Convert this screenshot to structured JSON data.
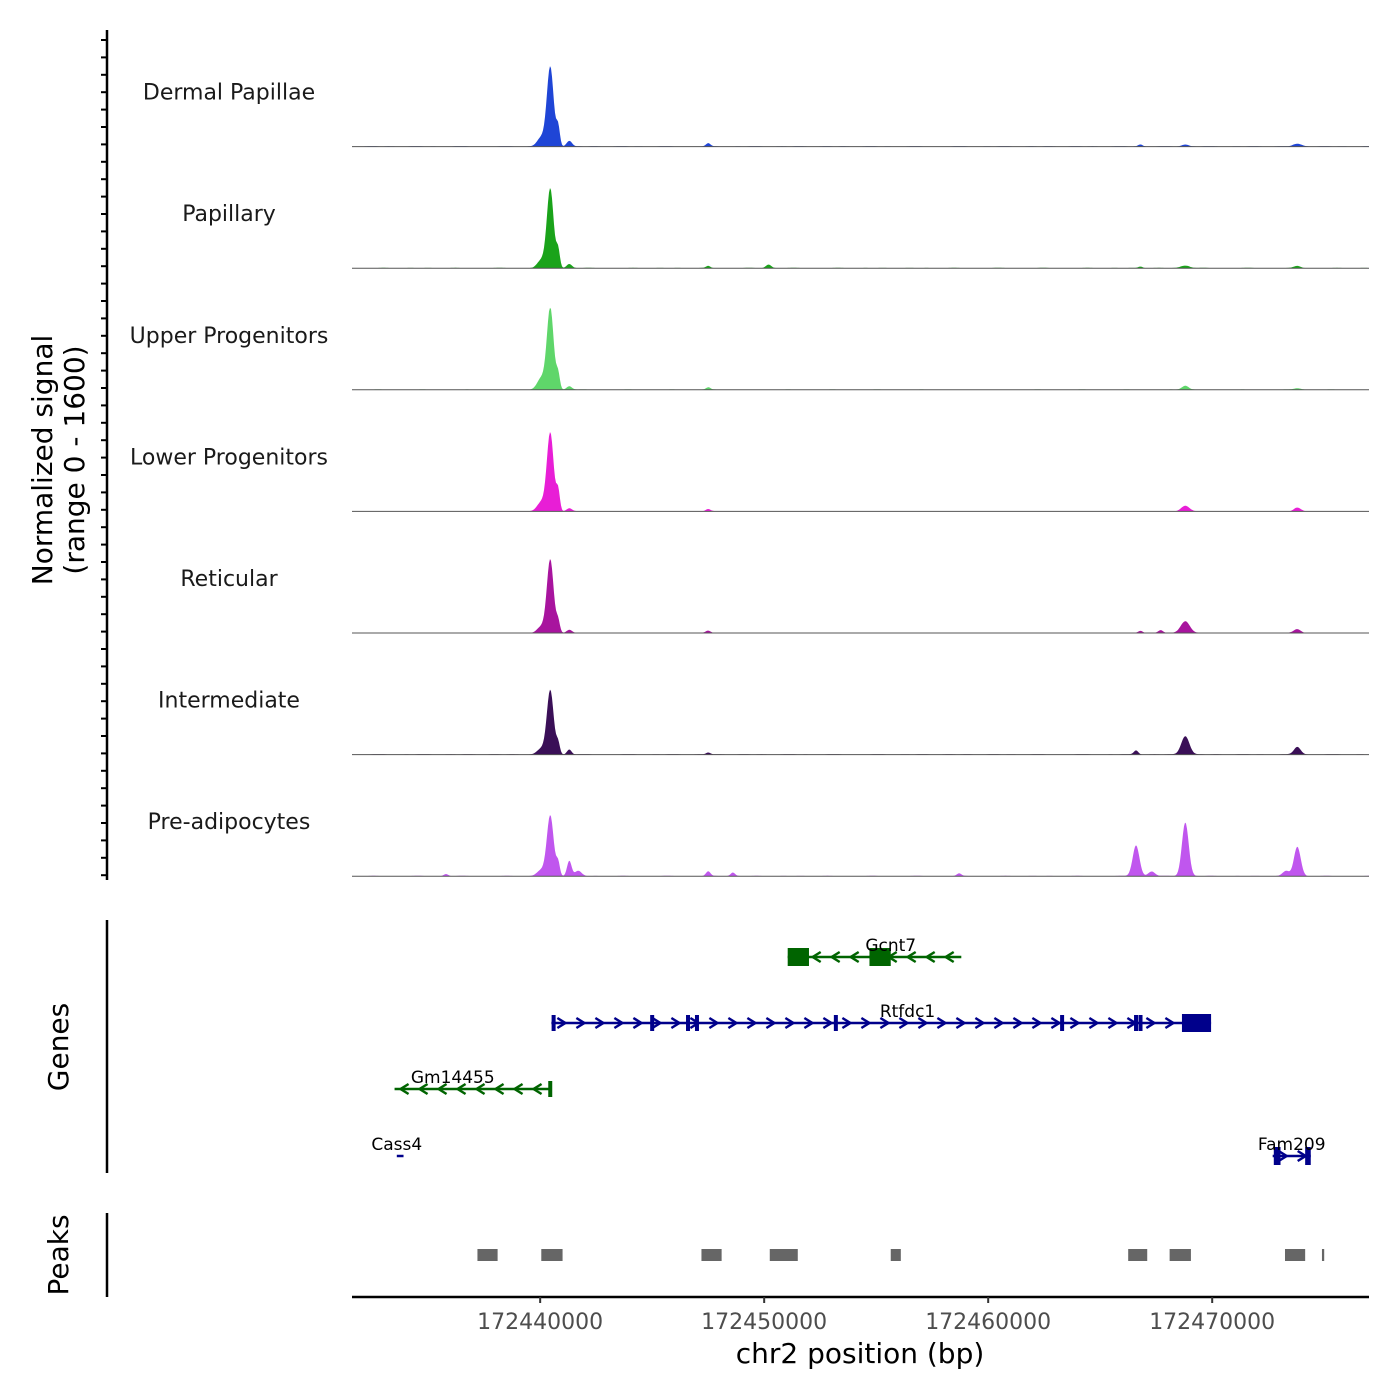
{
  "chart_data": {
    "type": "area",
    "title": "",
    "ylabel_line1": "Normalized signal",
    "ylabel_line2": "(range 0 - 1600)",
    "ylim": [
      0,
      1600
    ],
    "xlabel": "chr2 position (bp)",
    "xlim": [
      172431600,
      172477000
    ],
    "xticks": [
      172440000,
      172450000,
      172460000,
      172470000
    ],
    "xtick_labels": [
      "172440000",
      "172450000",
      "172460000",
      "172470000"
    ],
    "genes_label": "Genes",
    "peaks_label": "Peaks",
    "tracks": [
      {
        "name": "Dermal Papillae",
        "color": "#1f45d6",
        "peaks": [
          [
            172440450,
            1550,
            150
          ],
          [
            172440800,
            380,
            80
          ],
          [
            172441300,
            110,
            120
          ],
          [
            172440050,
            180,
            180
          ],
          [
            172447500,
            60,
            100
          ],
          [
            172466800,
            40,
            100
          ],
          [
            172468800,
            40,
            150
          ],
          [
            172473800,
            50,
            200
          ]
        ]
      },
      {
        "name": "Papillary",
        "color": "#1aa31a",
        "peaks": [
          [
            172440450,
            1550,
            150
          ],
          [
            172440800,
            350,
            80
          ],
          [
            172441300,
            80,
            120
          ],
          [
            172440050,
            150,
            180
          ],
          [
            172447500,
            40,
            100
          ],
          [
            172450200,
            70,
            120
          ],
          [
            172466800,
            30,
            100
          ],
          [
            172468800,
            50,
            200
          ],
          [
            172473800,
            40,
            150
          ]
        ]
      },
      {
        "name": "Upper Progenitors",
        "color": "#5fd66a",
        "peaks": [
          [
            172440450,
            1600,
            150
          ],
          [
            172440800,
            300,
            80
          ],
          [
            172441300,
            70,
            120
          ],
          [
            172440050,
            220,
            180
          ],
          [
            172447500,
            50,
            100
          ],
          [
            172468800,
            80,
            150
          ],
          [
            172473800,
            30,
            150
          ]
        ]
      },
      {
        "name": "Lower Progenitors",
        "color": "#e81ed6",
        "peaks": [
          [
            172440450,
            1530,
            150
          ],
          [
            172440800,
            400,
            80
          ],
          [
            172441300,
            60,
            120
          ],
          [
            172440050,
            180,
            180
          ],
          [
            172447500,
            40,
            100
          ],
          [
            172468800,
            110,
            180
          ],
          [
            172473800,
            70,
            150
          ]
        ]
      },
      {
        "name": "Reticular",
        "color": "#a8149e",
        "peaks": [
          [
            172440450,
            1430,
            150
          ],
          [
            172440800,
            230,
            80
          ],
          [
            172441300,
            60,
            120
          ],
          [
            172440050,
            120,
            180
          ],
          [
            172447500,
            40,
            100
          ],
          [
            172466800,
            40,
            100
          ],
          [
            172467700,
            50,
            100
          ],
          [
            172468800,
            230,
            200
          ],
          [
            172473800,
            70,
            150
          ]
        ]
      },
      {
        "name": "Intermediate",
        "color": "#3a0f57",
        "peaks": [
          [
            172440450,
            1260,
            150
          ],
          [
            172440800,
            220,
            80
          ],
          [
            172441300,
            100,
            100
          ],
          [
            172440050,
            110,
            180
          ],
          [
            172447500,
            40,
            100
          ],
          [
            172466600,
            80,
            100
          ],
          [
            172468800,
            360,
            180
          ],
          [
            172473800,
            150,
            150
          ]
        ]
      },
      {
        "name": "Pre-adipocytes",
        "color": "#c056ee",
        "peaks": [
          [
            172440450,
            1180,
            150
          ],
          [
            172440800,
            260,
            80
          ],
          [
            172441300,
            300,
            100
          ],
          [
            172440050,
            120,
            180
          ],
          [
            172441700,
            100,
            150
          ],
          [
            172447500,
            90,
            100
          ],
          [
            172448600,
            70,
            100
          ],
          [
            172466600,
            600,
            150
          ],
          [
            172468800,
            1050,
            150
          ],
          [
            172467300,
            90,
            150
          ],
          [
            172473800,
            570,
            150
          ],
          [
            172473300,
            100,
            150
          ],
          [
            172435800,
            40,
            100
          ],
          [
            172458700,
            50,
            100
          ]
        ]
      }
    ],
    "genes": [
      {
        "name": "Gcnt7",
        "start": 172451050,
        "end": 172458800,
        "strand": "-",
        "color": "#006400",
        "exons": [
          [
            172451050,
            172452000
          ],
          [
            172454700,
            172455650
          ]
        ],
        "small_exons": [],
        "row": 0,
        "label_pos": 172455650
      },
      {
        "name": "Rtfdc1",
        "start": 172440500,
        "end": 172469950,
        "strand": "+",
        "color": "#00008b",
        "exons": [
          [
            172468650,
            172469950
          ]
        ],
        "small_exons": [
          172440600,
          172445000,
          172446600,
          172447000,
          172453200,
          172463300,
          172466600,
          172466800
        ],
        "row": 1,
        "label_pos": 172456400
      },
      {
        "name": "Gm14455",
        "start": 172433500,
        "end": 172440500,
        "strand": "-",
        "color": "#006400",
        "exons": [],
        "small_exons": [
          172440450
        ],
        "row": 2,
        "label_pos": 172436100
      },
      {
        "name": "Cass4",
        "start": 172433600,
        "end": 172433900,
        "strand": "+",
        "color": "#00008b",
        "exons": [],
        "small_exons": [],
        "row": 3,
        "label_pos": 172433600
      },
      {
        "name": "Fam209",
        "start": 172472700,
        "end": 172474400,
        "strand": "+",
        "color": "#00008b",
        "exons": [
          [
            172472750,
            172473050
          ],
          [
            172474150,
            172474400
          ]
        ],
        "small_exons": [],
        "row": 3,
        "label_pos": 172473550
      }
    ],
    "peak_regions": [
      [
        172437200,
        172438100
      ],
      [
        172440050,
        172441000
      ],
      [
        172447200,
        172448100
      ],
      [
        172450250,
        172451500
      ],
      [
        172455650,
        172456100
      ],
      [
        172466250,
        172467100
      ],
      [
        172468100,
        172469050
      ],
      [
        172473250,
        172474150
      ],
      [
        172474900,
        172475000
      ]
    ]
  }
}
